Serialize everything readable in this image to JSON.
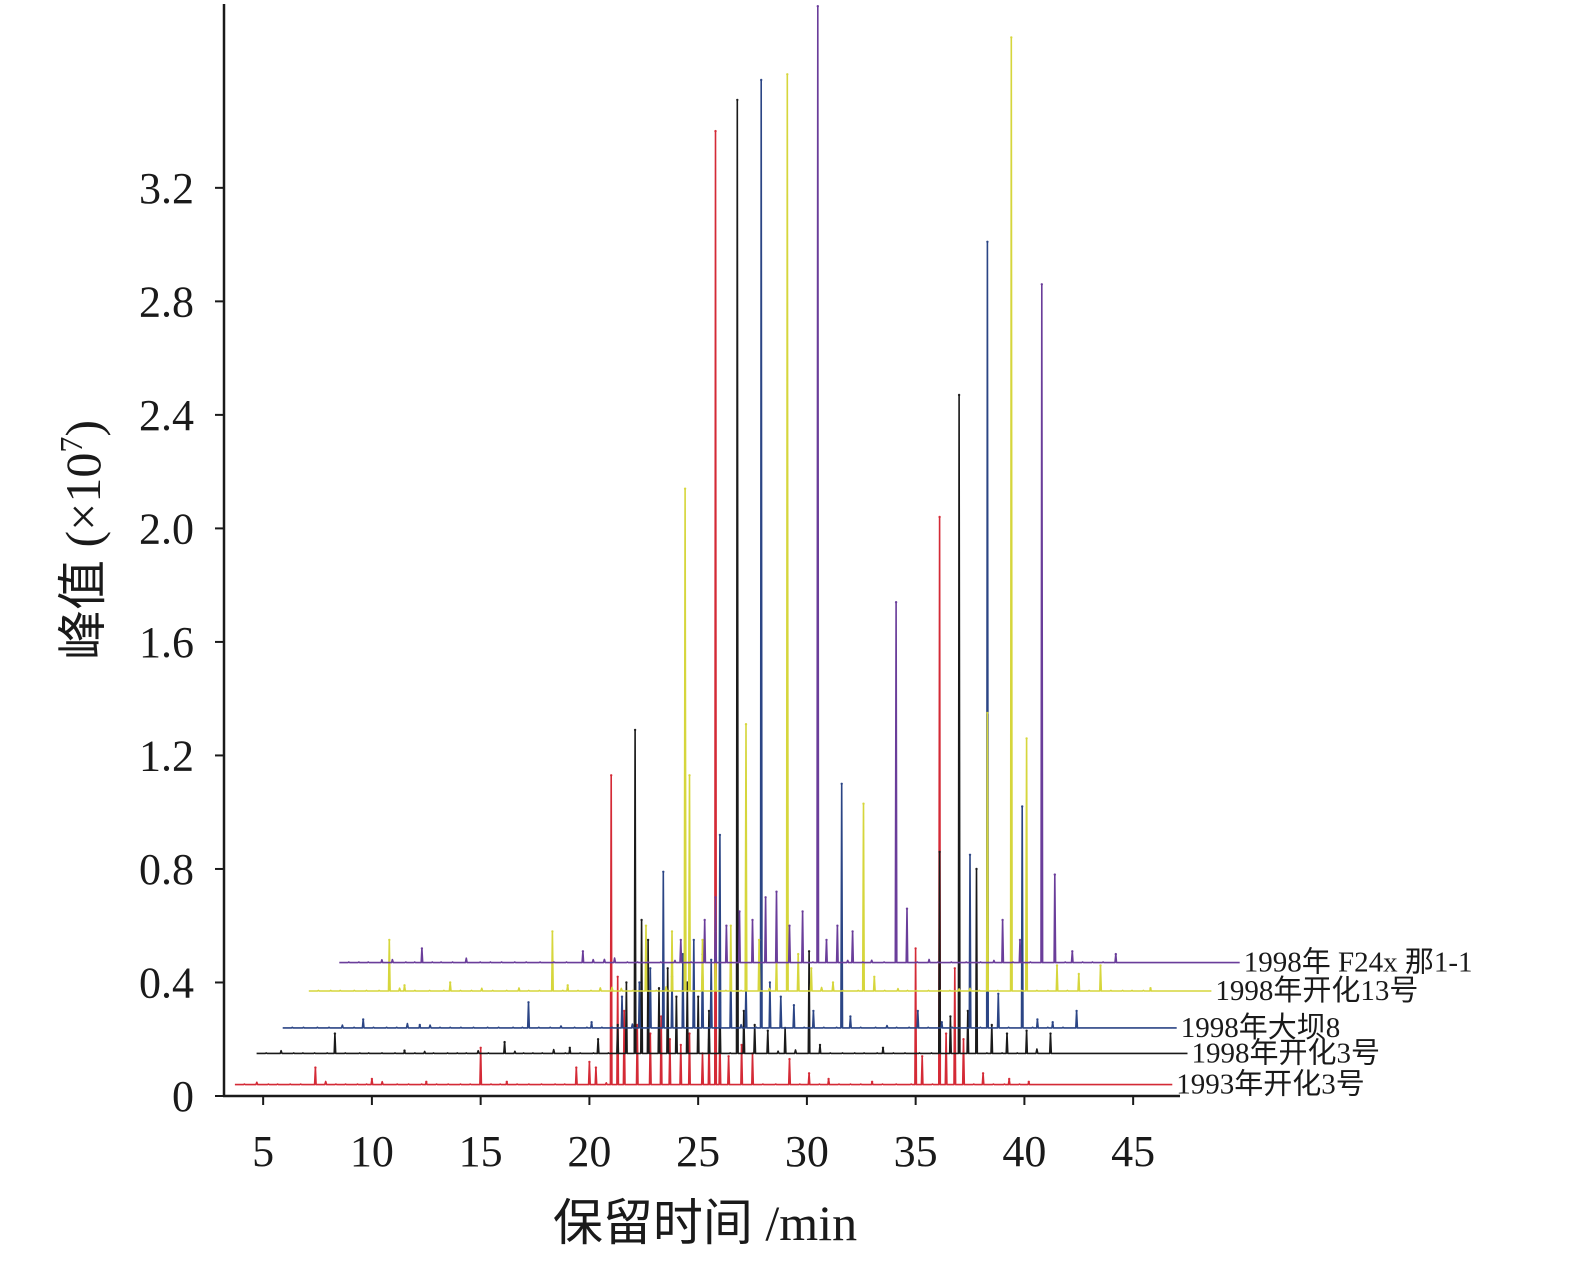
{
  "chart_data": {
    "type": "line",
    "title": "",
    "xlabel": "保留时间 /min",
    "ylabel_main": "峰值 (×10",
    "ylabel_sup": "7",
    "ylabel_close": ")",
    "xlim": [
      3.2,
      47.5
    ],
    "ylim": [
      0,
      3.84
    ],
    "x_ticks": [
      5,
      10,
      15,
      20,
      25,
      30,
      35,
      40,
      45
    ],
    "x_tick_labels": [
      "5",
      "10",
      "15",
      "20",
      "25",
      "30",
      "35",
      "40",
      "45"
    ],
    "y_ticks": [
      0,
      0.4,
      0.8,
      1.2,
      1.6,
      2.0,
      2.4,
      2.8,
      3.2
    ],
    "y_tick_labels": [
      "0",
      "0.4",
      "0.8",
      "1.2",
      "1.6",
      "2.0",
      "2.4",
      "2.8",
      "3.2"
    ],
    "grid": false,
    "legend": "labels at right end of each trace",
    "series": [
      {
        "name": "1993年开化3号",
        "color": "#d42a36",
        "baseline": 0.04,
        "x_range": [
          3.7,
          46.8
        ],
        "peaks": [
          [
            7.4,
            0.1
          ],
          [
            10.0,
            0.06
          ],
          [
            12.5,
            0.05
          ],
          [
            15.0,
            0.17
          ],
          [
            16.2,
            0.05
          ],
          [
            19.4,
            0.1
          ],
          [
            20.0,
            0.12
          ],
          [
            20.3,
            0.1
          ],
          [
            21.0,
            1.13
          ],
          [
            21.3,
            0.42
          ],
          [
            21.6,
            0.3
          ],
          [
            22.2,
            0.25
          ],
          [
            22.8,
            0.22
          ],
          [
            23.3,
            0.28
          ],
          [
            23.7,
            0.2
          ],
          [
            24.2,
            0.18
          ],
          [
            24.6,
            0.22
          ],
          [
            25.2,
            0.15
          ],
          [
            25.5,
            0.2
          ],
          [
            25.8,
            3.4
          ],
          [
            26.0,
            0.2
          ],
          [
            26.4,
            0.14
          ],
          [
            27.0,
            0.18
          ],
          [
            27.5,
            0.15
          ],
          [
            29.2,
            0.13
          ],
          [
            30.1,
            0.08
          ],
          [
            31.0,
            0.06
          ],
          [
            33.0,
            0.05
          ],
          [
            35.0,
            0.52
          ],
          [
            35.3,
            0.14
          ],
          [
            36.1,
            2.04
          ],
          [
            36.4,
            0.22
          ],
          [
            36.8,
            0.45
          ],
          [
            37.2,
            0.2
          ],
          [
            38.1,
            0.08
          ],
          [
            39.3,
            0.06
          ],
          [
            40.2,
            0.05
          ]
        ]
      },
      {
        "name": "1998年开化3号",
        "color": "#1a1a1a",
        "baseline": 0.15,
        "x_range": [
          4.7,
          47.5
        ],
        "peaks": [
          [
            8.3,
            0.22
          ],
          [
            11.5,
            0.16
          ],
          [
            16.1,
            0.19
          ],
          [
            19.1,
            0.17
          ],
          [
            20.4,
            0.2
          ],
          [
            21.3,
            0.25
          ],
          [
            21.7,
            0.4
          ],
          [
            22.1,
            1.29
          ],
          [
            22.4,
            0.62
          ],
          [
            22.7,
            0.55
          ],
          [
            23.2,
            0.38
          ],
          [
            23.6,
            0.45
          ],
          [
            24.0,
            0.35
          ],
          [
            24.5,
            0.4
          ],
          [
            25.0,
            0.35
          ],
          [
            25.5,
            0.3
          ],
          [
            26.0,
            0.33
          ],
          [
            26.8,
            3.51
          ],
          [
            27.1,
            0.3
          ],
          [
            27.6,
            0.25
          ],
          [
            28.2,
            0.23
          ],
          [
            29.0,
            0.24
          ],
          [
            30.1,
            0.51
          ],
          [
            30.6,
            0.18
          ],
          [
            33.5,
            0.17
          ],
          [
            36.1,
            0.86
          ],
          [
            36.6,
            0.28
          ],
          [
            37.0,
            2.47
          ],
          [
            37.4,
            0.3
          ],
          [
            37.8,
            0.8
          ],
          [
            38.5,
            0.25
          ],
          [
            39.2,
            0.22
          ],
          [
            40.1,
            0.23
          ],
          [
            41.2,
            0.22
          ]
        ]
      },
      {
        "name": "1998年大坝8",
        "color": "#2b4585",
        "baseline": 0.24,
        "x_range": [
          5.9,
          47.0
        ],
        "peaks": [
          [
            9.6,
            0.27
          ],
          [
            12.2,
            0.25
          ],
          [
            17.2,
            0.33
          ],
          [
            20.1,
            0.26
          ],
          [
            21.5,
            0.35
          ],
          [
            22.3,
            0.4
          ],
          [
            22.8,
            0.45
          ],
          [
            23.4,
            0.79
          ],
          [
            23.8,
            0.42
          ],
          [
            24.3,
            0.5
          ],
          [
            24.8,
            0.55
          ],
          [
            25.2,
            0.5
          ],
          [
            25.6,
            0.48
          ],
          [
            26.0,
            0.92
          ],
          [
            26.5,
            0.45
          ],
          [
            27.2,
            0.4
          ],
          [
            27.9,
            3.58
          ],
          [
            28.3,
            0.4
          ],
          [
            28.8,
            0.35
          ],
          [
            29.4,
            0.32
          ],
          [
            30.3,
            0.3
          ],
          [
            31.6,
            1.1
          ],
          [
            32.0,
            0.28
          ],
          [
            35.1,
            0.3
          ],
          [
            36.2,
            0.26
          ],
          [
            37.5,
            0.85
          ],
          [
            38.3,
            3.01
          ],
          [
            38.8,
            0.36
          ],
          [
            39.9,
            1.02
          ],
          [
            40.6,
            0.27
          ],
          [
            41.3,
            0.26
          ],
          [
            42.4,
            0.3
          ]
        ]
      },
      {
        "name": "1998年开化13号",
        "color": "#d6d63c",
        "baseline": 0.37,
        "x_range": [
          7.1,
          48.6
        ],
        "peaks": [
          [
            10.8,
            0.55
          ],
          [
            11.5,
            0.39
          ],
          [
            13.6,
            0.4
          ],
          [
            18.3,
            0.58
          ],
          [
            19.0,
            0.39
          ],
          [
            22.6,
            0.6
          ],
          [
            23.8,
            0.58
          ],
          [
            24.4,
            2.14
          ],
          [
            24.6,
            1.13
          ],
          [
            25.2,
            0.55
          ],
          [
            25.8,
            0.58
          ],
          [
            26.5,
            0.6
          ],
          [
            27.2,
            1.31
          ],
          [
            27.8,
            0.55
          ],
          [
            28.6,
            0.5
          ],
          [
            29.1,
            3.6
          ],
          [
            29.6,
            0.5
          ],
          [
            30.2,
            0.45
          ],
          [
            31.2,
            0.4
          ],
          [
            32.6,
            1.03
          ],
          [
            33.1,
            0.42
          ],
          [
            38.3,
            1.35
          ],
          [
            39.4,
            3.73
          ],
          [
            40.1,
            1.26
          ],
          [
            41.5,
            0.46
          ],
          [
            42.5,
            0.43
          ],
          [
            43.5,
            0.46
          ],
          [
            45.8,
            0.38
          ]
        ]
      },
      {
        "name": "1998年 F24x 那1-1",
        "color": "#6a3d9a",
        "baseline": 0.47,
        "x_range": [
          8.5,
          49.9
        ],
        "peaks": [
          [
            12.3,
            0.52
          ],
          [
            19.7,
            0.51
          ],
          [
            24.2,
            0.55
          ],
          [
            25.3,
            0.62
          ],
          [
            25.8,
            0.7
          ],
          [
            26.3,
            0.6
          ],
          [
            26.9,
            0.65
          ],
          [
            27.5,
            0.62
          ],
          [
            28.1,
            0.7
          ],
          [
            28.6,
            0.72
          ],
          [
            29.2,
            0.6
          ],
          [
            29.8,
            0.65
          ],
          [
            30.5,
            3.84
          ],
          [
            30.9,
            0.55
          ],
          [
            31.4,
            0.6
          ],
          [
            32.1,
            0.58
          ],
          [
            34.1,
            1.74
          ],
          [
            34.6,
            0.66
          ],
          [
            39.0,
            0.62
          ],
          [
            39.8,
            0.55
          ],
          [
            40.8,
            2.86
          ],
          [
            41.4,
            0.78
          ],
          [
            42.2,
            0.51
          ],
          [
            44.2,
            0.5
          ]
        ]
      }
    ]
  }
}
